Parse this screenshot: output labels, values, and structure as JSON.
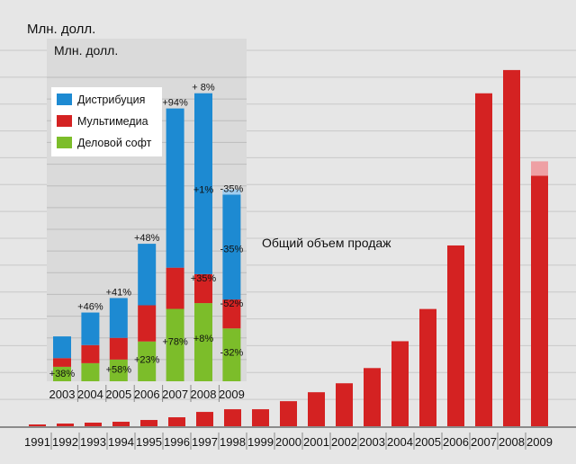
{
  "chart_data": [
    {
      "type": "bar",
      "ylabel": "Млн. долл.",
      "annotation": "Общий объем продаж",
      "categories": [
        "1991",
        "1992",
        "1993",
        "1994",
        "1995",
        "1996",
        "1997",
        "1998",
        "1999",
        "2000",
        "2001",
        "2002",
        "2003",
        "2004",
        "2005",
        "2006",
        "2007",
        "2008",
        "2009"
      ],
      "values": [
        2,
        3,
        4,
        5,
        7,
        10,
        16,
        19,
        19,
        28,
        38,
        48,
        65,
        95,
        131,
        202,
        372,
        398,
        280
      ],
      "projection_extra": [
        0,
        0,
        0,
        0,
        0,
        0,
        0,
        0,
        0,
        0,
        0,
        0,
        0,
        0,
        0,
        0,
        0,
        0,
        16
      ],
      "ylim": [
        0,
        420
      ],
      "colors": {
        "bar": "#d42222",
        "projection": "#eea0a4"
      },
      "grid": true
    },
    {
      "type": "bar",
      "stacked": true,
      "ylabel": "Млн. долл.",
      "categories": [
        "2003",
        "2004",
        "2005",
        "2006",
        "2007",
        "2008",
        "2009"
      ],
      "series": [
        {
          "name": "Деловой софт",
          "color": "#7cbd2a",
          "values": [
            20,
            25,
            30,
            55,
            100,
            108,
            73
          ]
        },
        {
          "name": "Мультимедиа",
          "color": "#d42222",
          "values": [
            12,
            25,
            30,
            50,
            57,
            40,
            40
          ]
        },
        {
          "name": "Дистрибуция",
          "color": "#1d8ad2",
          "values": [
            30,
            45,
            55,
            85,
            220,
            250,
            145
          ]
        }
      ],
      "projection": {
        "series": "Дистрибуция",
        "color": "#9dcdf0",
        "values": [
          0,
          0,
          0,
          0,
          0,
          0,
          7
        ]
      },
      "ylim": [
        0,
        420
      ],
      "grid": true,
      "legend_position": "top-left",
      "growth_labels": [
        {
          "category": "2003",
          "series": "Деловой софт",
          "text": "+38%"
        },
        {
          "category": "2004",
          "series": "Дистрибуция",
          "text": "+46%"
        },
        {
          "category": "2005",
          "series": "Дистрибуция",
          "text": "+41%"
        },
        {
          "category": "2005",
          "series": "Деловой софт",
          "text": "+58%"
        },
        {
          "category": "2006",
          "series": "Дистрибуция",
          "text": "+48%"
        },
        {
          "category": "2006",
          "series": "Деловой софт",
          "text": "+23%"
        },
        {
          "category": "2007",
          "series": "Дистрибуция",
          "text": "+94%"
        },
        {
          "category": "2007",
          "series": "Деловой софт",
          "text": "+78%"
        },
        {
          "category": "2008",
          "series": "Дистрибуция",
          "text": "+ 8%"
        },
        {
          "category": "2008",
          "series": "Дистрибуция",
          "text": "+1%"
        },
        {
          "category": "2008",
          "series": "Мультимедиа",
          "text": "+35%"
        },
        {
          "category": "2008",
          "series": "Деловой софт",
          "text": "+8%"
        },
        {
          "category": "2009",
          "series": "Дистрибуция",
          "text": "-35%"
        },
        {
          "category": "2009",
          "series": "Дистрибуция",
          "text": "-35%"
        },
        {
          "category": "2009",
          "series": "Мультимедиа",
          "text": "-52%"
        },
        {
          "category": "2009",
          "series": "Деловой софт",
          "text": "-32%"
        }
      ]
    }
  ]
}
